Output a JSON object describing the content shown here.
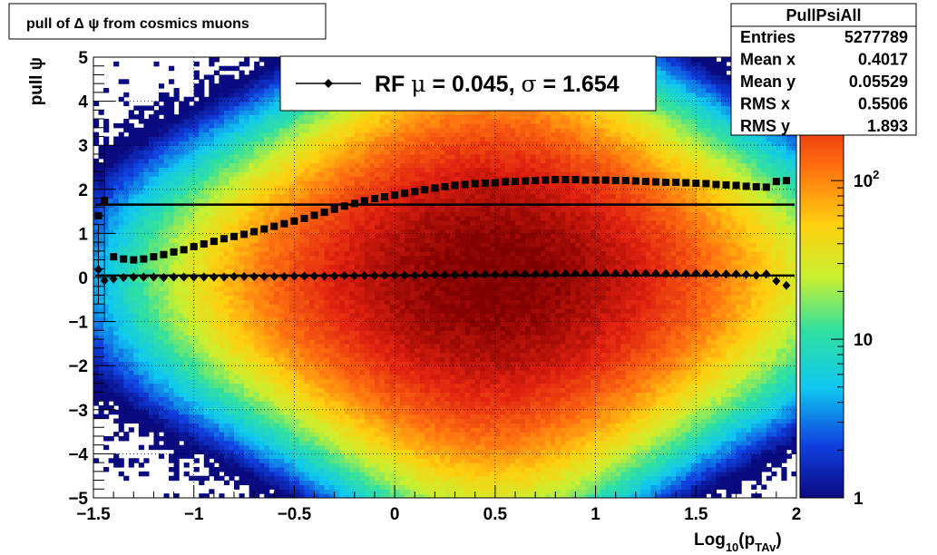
{
  "chart_data": {
    "type": "heatmap",
    "title": "pull of Δ ψ from cosmics muons",
    "xlabel": {
      "base": "Log",
      "sub1": "10",
      "mid": "(p",
      "sub2": "TAv",
      "end": ")"
    },
    "ylabel": "pull ψ",
    "xlim": [
      -1.5,
      2
    ],
    "ylim": [
      -5,
      5
    ],
    "x_ticks": [
      -1.5,
      -1,
      -0.5,
      0,
      0.5,
      1,
      1.5,
      2
    ],
    "x_tick_labels": [
      "−1.5",
      "−1",
      "−0.5",
      "0",
      "0.5",
      "1",
      "1.5",
      "2"
    ],
    "y_ticks": [
      -5,
      -4,
      -3,
      -2,
      -1,
      0,
      1,
      2,
      3,
      4,
      5
    ],
    "y_tick_labels": [
      "−5",
      "−4",
      "−3",
      "−2",
      "−1",
      "0",
      "1",
      "2",
      "3",
      "4",
      "5"
    ],
    "grid": true,
    "z_scale": "log",
    "z_range": [
      1,
      600
    ],
    "z_tick_labels": [
      {
        "value": 1,
        "base": "1",
        "exp": ""
      },
      {
        "value": 10,
        "base": "10",
        "exp": ""
      },
      {
        "value": 100,
        "base": "10",
        "exp": "2"
      }
    ],
    "heat": {
      "center_x": 0.48,
      "center_y": 0.0,
      "peak": 600,
      "sigma_x": 0.62,
      "sigma_y": 1.85
    },
    "series": [
      {
        "marker": "square",
        "x": [
          -1.475,
          -1.445,
          -1.4,
          -1.35,
          -1.3,
          -1.25,
          -1.2,
          -1.15,
          -1.1,
          -1.05,
          -1.0,
          -0.95,
          -0.9,
          -0.85,
          -0.8,
          -0.75,
          -0.7,
          -0.65,
          -0.6,
          -0.55,
          -0.5,
          -0.45,
          -0.4,
          -0.35,
          -0.3,
          -0.25,
          -0.2,
          -0.15,
          -0.1,
          -0.05,
          0.0,
          0.05,
          0.1,
          0.15,
          0.2,
          0.25,
          0.3,
          0.35,
          0.4,
          0.45,
          0.5,
          0.55,
          0.6,
          0.65,
          0.7,
          0.75,
          0.8,
          0.85,
          0.9,
          0.95,
          1.0,
          1.05,
          1.1,
          1.15,
          1.2,
          1.25,
          1.3,
          1.35,
          1.4,
          1.45,
          1.5,
          1.55,
          1.6,
          1.65,
          1.7,
          1.75,
          1.8,
          1.85,
          1.9,
          1.95
        ],
        "y": [
          1.4,
          1.75,
          0.47,
          0.42,
          0.4,
          0.42,
          0.47,
          0.52,
          0.58,
          0.63,
          0.7,
          0.76,
          0.82,
          0.88,
          0.93,
          0.98,
          1.04,
          1.1,
          1.16,
          1.22,
          1.28,
          1.34,
          1.41,
          1.48,
          1.55,
          1.62,
          1.68,
          1.74,
          1.79,
          1.83,
          1.87,
          1.91,
          1.95,
          1.99,
          2.03,
          2.06,
          2.09,
          2.11,
          2.13,
          2.14,
          2.15,
          2.17,
          2.18,
          2.19,
          2.2,
          2.21,
          2.22,
          2.22,
          2.22,
          2.21,
          2.21,
          2.21,
          2.2,
          2.2,
          2.19,
          2.18,
          2.17,
          2.16,
          2.16,
          2.15,
          2.14,
          2.13,
          2.11,
          2.1,
          2.09,
          2.07,
          2.06,
          2.05,
          2.18,
          2.2
        ]
      },
      {
        "marker": "diamond",
        "x": [
          -1.475,
          -1.445,
          -1.4,
          -1.35,
          -1.3,
          -1.25,
          -1.2,
          -1.15,
          -1.1,
          -1.05,
          -1.0,
          -0.95,
          -0.9,
          -0.85,
          -0.8,
          -0.75,
          -0.7,
          -0.65,
          -0.6,
          -0.55,
          -0.5,
          -0.45,
          -0.4,
          -0.35,
          -0.3,
          -0.25,
          -0.2,
          -0.15,
          -0.1,
          -0.05,
          0.0,
          0.05,
          0.1,
          0.15,
          0.2,
          0.25,
          0.3,
          0.35,
          0.4,
          0.45,
          0.5,
          0.55,
          0.6,
          0.65,
          0.7,
          0.75,
          0.8,
          0.85,
          0.9,
          0.95,
          1.0,
          1.05,
          1.1,
          1.15,
          1.2,
          1.25,
          1.3,
          1.35,
          1.4,
          1.45,
          1.5,
          1.55,
          1.6,
          1.65,
          1.7,
          1.75,
          1.8,
          1.85,
          1.9,
          1.95
        ],
        "y": [
          0.18,
          -0.07,
          -0.03,
          0.0,
          0.01,
          0.01,
          0.01,
          0.0,
          0.01,
          0.01,
          0.01,
          0.01,
          0.01,
          0.01,
          0.02,
          0.02,
          0.02,
          0.02,
          0.02,
          0.02,
          0.03,
          0.03,
          0.03,
          0.03,
          0.03,
          0.04,
          0.04,
          0.04,
          0.04,
          0.05,
          0.05,
          0.05,
          0.05,
          0.06,
          0.06,
          0.06,
          0.06,
          0.06,
          0.07,
          0.07,
          0.07,
          0.07,
          0.08,
          0.08,
          0.08,
          0.08,
          0.08,
          0.09,
          0.09,
          0.09,
          0.09,
          0.09,
          0.09,
          0.09,
          0.09,
          0.09,
          0.09,
          0.09,
          0.09,
          0.09,
          0.09,
          0.09,
          0.08,
          0.08,
          0.08,
          0.07,
          0.05,
          0.08,
          -0.08,
          -0.18
        ]
      }
    ],
    "error_bars": [
      {
        "x": -1.445,
        "y": 1.75,
        "low": -1.0,
        "high": 3.0
      },
      {
        "x": -1.475,
        "y": 0.18,
        "low": -0.6,
        "high": 1.2
      }
    ],
    "fit_lines": [
      {
        "y": 1.654
      },
      {
        "y": 0.045
      }
    ],
    "legend": {
      "placement": "top-center",
      "label": {
        "prefix": "RF ",
        "mu": "μ",
        "mid": " =  0.045, ",
        "sigma": "σ",
        "end": " =   1.654"
      }
    },
    "stats": {
      "placement": "top-right",
      "title": "PullPsiAll",
      "rows": [
        {
          "label": "Entries",
          "value": "5277789"
        },
        {
          "label": "Mean x",
          "value": "0.4017"
        },
        {
          "label": "Mean y",
          "value": "0.05529"
        },
        {
          "label": "RMS x",
          "value": "0.5506"
        },
        {
          "label": "RMS y",
          "value": "1.893"
        }
      ]
    }
  }
}
